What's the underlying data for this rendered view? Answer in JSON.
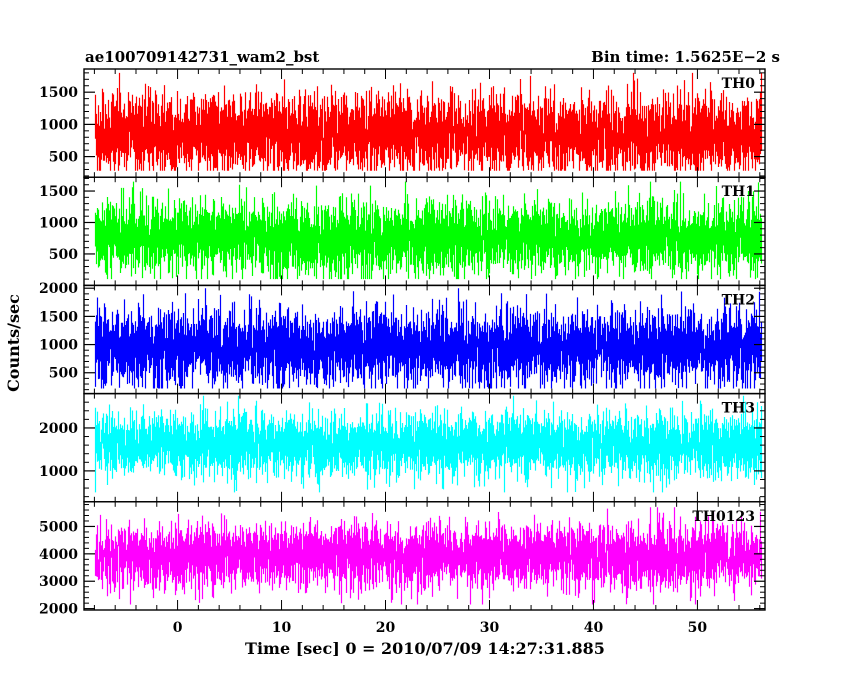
{
  "header": {
    "title": "ae100709142731_wam2_bst",
    "bin_time": "Bin time: 1.5625E−2 s"
  },
  "axes": {
    "xlabel": "Time [sec] 0 = 2010/07/09 14:27:31.885",
    "ylabel": "Counts/sec"
  },
  "chart_data": {
    "type": "line",
    "x_range": [
      -9.0,
      56.5
    ],
    "data_x_range": [
      -7.9,
      56.1
    ],
    "bin_time": 0.015625,
    "x_ticks": [
      0,
      10,
      20,
      30,
      40,
      50
    ],
    "x_minor_step": 2,
    "panels": [
      {
        "name": "TH0",
        "color": "#ff0000",
        "ylim": [
          180,
          1860
        ],
        "y_ticks": [
          500,
          1000,
          1500
        ],
        "y_minor_step": 100,
        "mean": 850,
        "min": 280,
        "max": 1800
      },
      {
        "name": "TH1",
        "color": "#00ff00",
        "ylim": [
          0,
          1720
        ],
        "y_ticks": [
          500,
          1000,
          1500
        ],
        "y_minor_step": 100,
        "mean": 760,
        "min": 100,
        "max": 1650
      },
      {
        "name": "TH2",
        "color": "#0000ff",
        "ylim": [
          130,
          2050
        ],
        "y_ticks": [
          500,
          1000,
          1500,
          2000
        ],
        "y_minor_step": 100,
        "mean": 950,
        "min": 220,
        "max": 2000
      },
      {
        "name": "TH3",
        "color": "#00ffff",
        "ylim": [
          280,
          2800
        ],
        "y_ticks": [
          1000,
          2000
        ],
        "y_minor_step": 200,
        "mean": 1600,
        "min": 500,
        "max": 2750
      },
      {
        "name": "TH0123",
        "color": "#ff00ff",
        "ylim": [
          1950,
          5900
        ],
        "y_ticks": [
          2000,
          3000,
          4000,
          5000
        ],
        "y_minor_step": 200,
        "mean": 3900,
        "min": 2150,
        "max": 5700
      }
    ]
  }
}
